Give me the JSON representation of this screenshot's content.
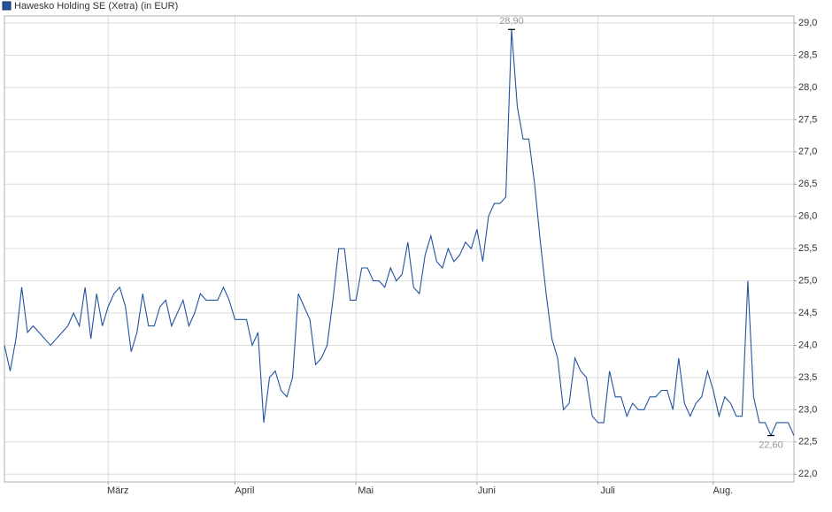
{
  "chart_data": {
    "type": "line",
    "categories": [
      null,
      null,
      null,
      null,
      null,
      null,
      null,
      null,
      null,
      null,
      null,
      null,
      null,
      null,
      null,
      null,
      null,
      null,
      "März",
      null,
      null,
      null,
      null,
      null,
      null,
      null,
      null,
      null,
      null,
      null,
      null,
      null,
      null,
      null,
      null,
      null,
      null,
      null,
      null,
      null,
      "April",
      null,
      null,
      null,
      null,
      null,
      null,
      null,
      null,
      null,
      null,
      null,
      null,
      null,
      null,
      null,
      null,
      null,
      null,
      null,
      null,
      "Mai",
      null,
      null,
      null,
      null,
      null,
      null,
      null,
      null,
      null,
      null,
      null,
      null,
      null,
      null,
      null,
      null,
      null,
      null,
      null,
      null,
      "Juni",
      null,
      null,
      null,
      null,
      null,
      null,
      null,
      null,
      null,
      null,
      null,
      null,
      null,
      null,
      null,
      null,
      null,
      null,
      null,
      null,
      "Juli",
      null,
      null,
      null,
      null,
      null,
      null,
      null,
      null,
      null,
      null,
      null,
      null,
      null,
      null,
      null,
      null,
      null,
      null,
      null,
      "Aug.",
      null,
      null,
      null,
      null,
      null,
      null,
      null,
      null,
      null,
      null,
      null,
      null,
      null,
      null
    ],
    "series": [
      {
        "name": "Hawesko Holding SE (Xetra) (in EUR)",
        "color": "#23549f",
        "values": [
          24.0,
          23.6,
          24.1,
          24.9,
          24.2,
          24.3,
          24.2,
          24.1,
          24.0,
          24.1,
          24.2,
          24.3,
          24.5,
          24.3,
          24.9,
          24.1,
          24.8,
          24.3,
          24.6,
          24.8,
          24.9,
          24.6,
          23.9,
          24.2,
          24.8,
          24.3,
          24.3,
          24.6,
          24.7,
          24.3,
          24.5,
          24.7,
          24.3,
          24.5,
          24.8,
          24.7,
          24.7,
          24.7,
          24.9,
          24.7,
          24.4,
          24.4,
          24.4,
          24.0,
          24.2,
          22.8,
          23.5,
          23.6,
          23.3,
          23.2,
          23.5,
          24.8,
          24.6,
          24.4,
          23.7,
          23.8,
          24.0,
          24.7,
          25.5,
          25.5,
          24.7,
          24.7,
          25.2,
          25.2,
          25.0,
          25.0,
          24.9,
          25.2,
          25.0,
          25.1,
          25.6,
          24.9,
          24.8,
          25.4,
          25.7,
          25.3,
          25.2,
          25.5,
          25.3,
          25.4,
          25.6,
          25.5,
          25.8,
          25.3,
          26.0,
          26.2,
          26.2,
          26.3,
          28.9,
          27.7,
          27.2,
          27.2,
          26.5,
          25.6,
          24.8,
          24.1,
          23.8,
          23.0,
          23.1,
          23.8,
          23.6,
          23.5,
          22.9,
          22.8,
          22.8,
          23.6,
          23.2,
          23.2,
          22.9,
          23.1,
          23.0,
          23.0,
          23.2,
          23.2,
          23.3,
          23.3,
          23.0,
          23.8,
          23.1,
          22.9,
          23.1,
          23.2,
          23.6,
          23.3,
          22.9,
          23.2,
          23.1,
          22.9,
          22.9,
          25.0,
          23.2,
          22.8,
          22.8,
          22.6,
          22.8,
          22.8,
          22.8,
          22.6
        ]
      }
    ],
    "annotations": [
      {
        "value": 28.9,
        "label": "28,90"
      },
      {
        "value": 22.6,
        "label": "22,60"
      }
    ],
    "ylim": [
      21.88,
      29.11
    ],
    "yticks": [
      {
        "value": 22,
        "label": "22,0"
      },
      {
        "value": 22.5,
        "label": "22,5"
      },
      {
        "value": 23,
        "label": "23,0"
      },
      {
        "value": 23.5,
        "label": "23,5"
      },
      {
        "value": 24,
        "label": "24,0"
      },
      {
        "value": 24.5,
        "label": "24,5"
      },
      {
        "value": 25,
        "label": "25,0"
      },
      {
        "value": 25.5,
        "label": "25,5"
      },
      {
        "value": 26,
        "label": "26,0"
      },
      {
        "value": 26.5,
        "label": "26,5"
      },
      {
        "value": 27,
        "label": "27,0"
      },
      {
        "value": 27.5,
        "label": "27,5"
      },
      {
        "value": 28,
        "label": "28,0"
      },
      {
        "value": 28.5,
        "label": "28,5"
      },
      {
        "value": 29,
        "label": "29,0"
      }
    ],
    "grid": true,
    "y_axis_side": "right"
  }
}
